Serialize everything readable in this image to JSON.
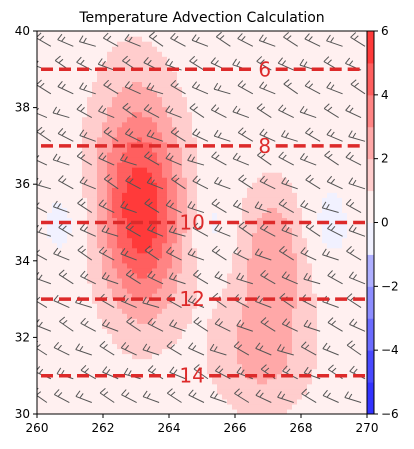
{
  "chart_data": {
    "type": "heatmap",
    "title": "Temperature Advection Calculation",
    "xlim": [
      260,
      270
    ],
    "ylim": [
      30,
      40
    ],
    "x_ticks": [
      260,
      262,
      264,
      266,
      268,
      270
    ],
    "y_ticks": [
      30,
      32,
      34,
      36,
      38,
      40
    ],
    "colorbar": {
      "range": [
        -6,
        6
      ],
      "ticks": [
        -6,
        -4,
        -2,
        0,
        2,
        4,
        6
      ],
      "cmap": "bwr",
      "low_color": "#3333ff",
      "mid_color": "#ffffff",
      "high_color": "#ff2222"
    },
    "advection_centers": [
      {
        "x": 263.2,
        "y": 35.0,
        "amplitude": 4.5,
        "sx": 0.9,
        "sy": 1.8
      },
      {
        "x": 262.9,
        "y": 37.0,
        "amplitude": 1.6,
        "sx": 1.0,
        "sy": 2.0
      },
      {
        "x": 267.2,
        "y": 34.3,
        "amplitude": 2.4,
        "sx": 0.8,
        "sy": 1.3
      },
      {
        "x": 266.8,
        "y": 31.6,
        "amplitude": 2.0,
        "sx": 1.1,
        "sy": 1.2
      },
      {
        "x": 261.0,
        "y": 35.0,
        "amplitude": -0.7,
        "sx": 0.6,
        "sy": 0.8
      },
      {
        "x": 265.3,
        "y": 34.9,
        "amplitude": -0.8,
        "sx": 0.5,
        "sy": 0.9
      },
      {
        "x": 268.6,
        "y": 34.9,
        "amplitude": -0.8,
        "sx": 0.6,
        "sy": 0.9
      }
    ],
    "isotherms": [
      {
        "y": 39,
        "label": "6",
        "label_x": 266.9
      },
      {
        "y": 37,
        "label": "8",
        "label_x": 266.9
      },
      {
        "y": 35,
        "label": "10",
        "label_x": 264.7
      },
      {
        "y": 33,
        "label": "12",
        "label_x": 264.7
      },
      {
        "y": 31,
        "label": "14",
        "label_x": 264.7
      }
    ],
    "isotherm_color": "#dd2a2a",
    "barb_color": "#555555",
    "wind_barbs": {
      "x_start": 260.3,
      "x_step": 0.68,
      "count_x": 15,
      "y_start": 30.3,
      "y_step": 0.62,
      "count_y": 16
    }
  }
}
